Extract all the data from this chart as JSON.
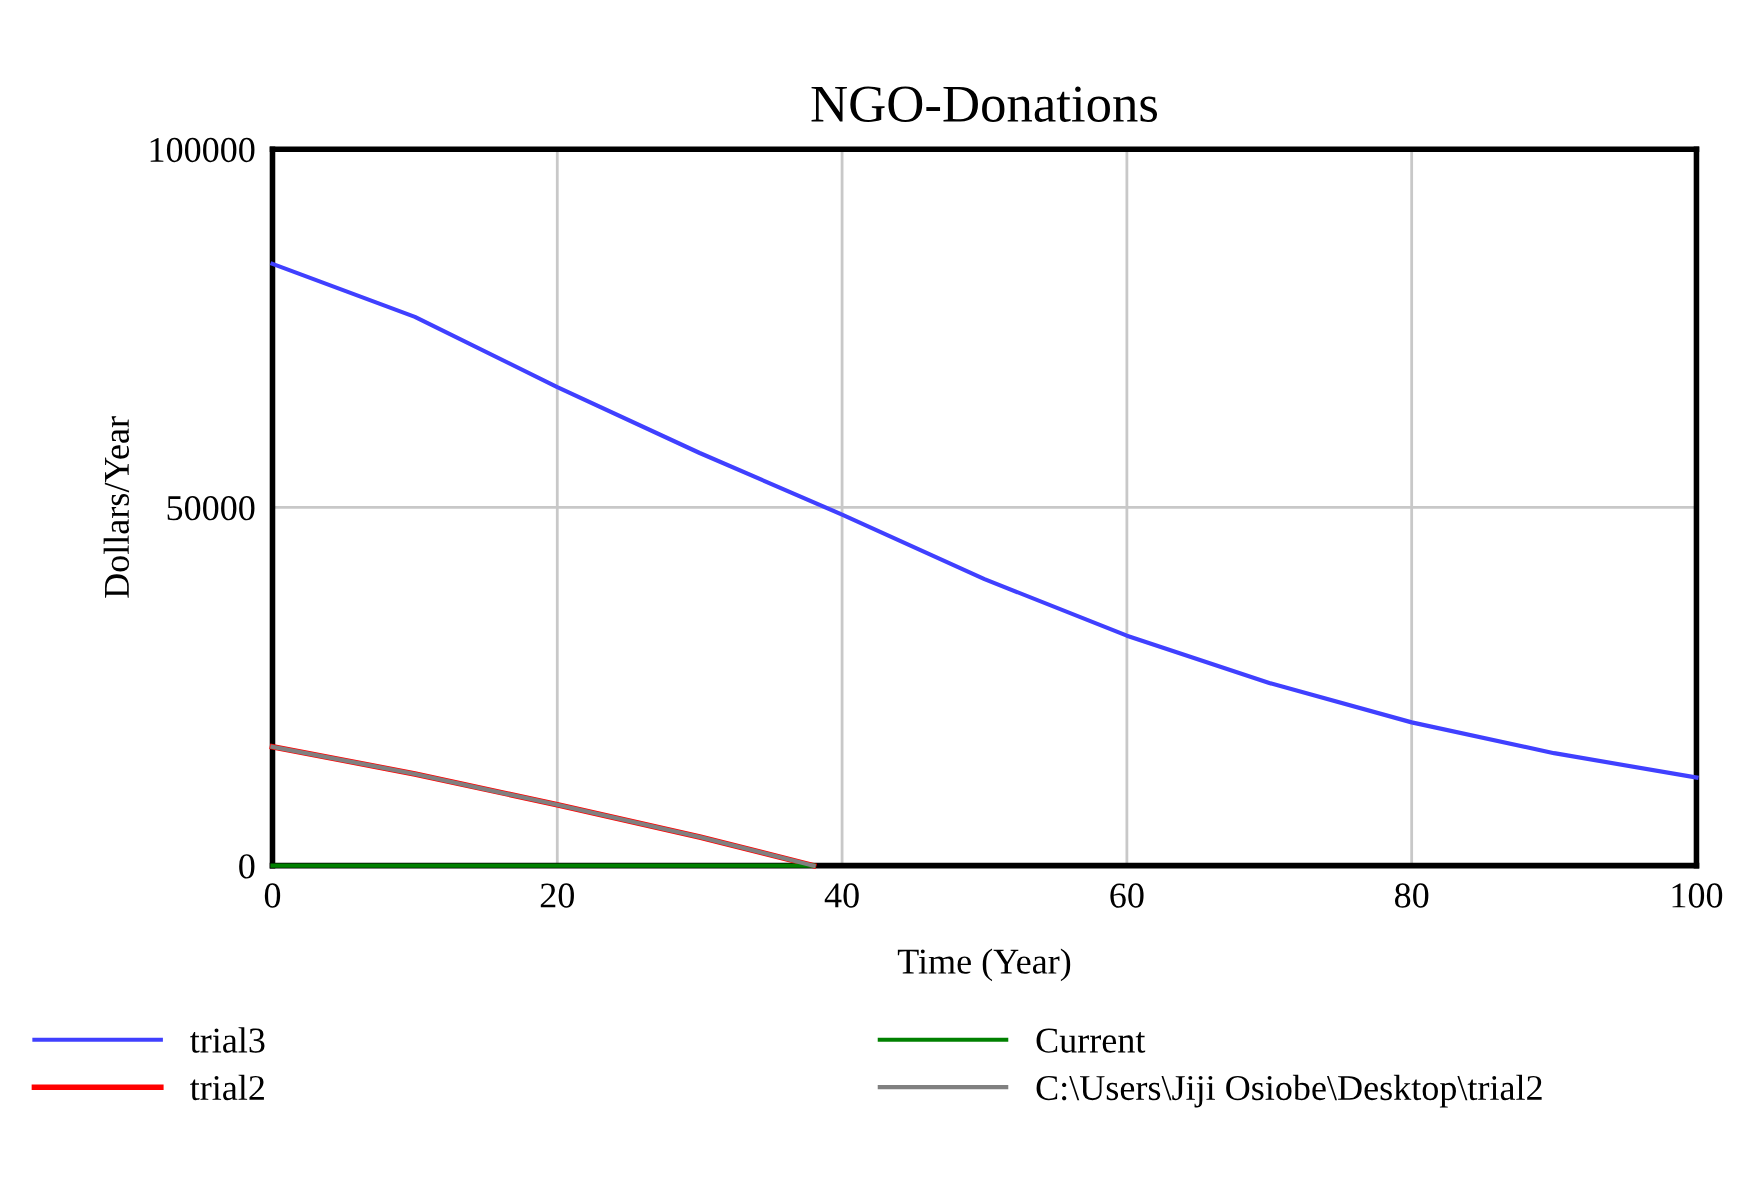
{
  "chart_data": {
    "type": "line",
    "title": "NGO-Donations",
    "xlabel": "Time (Year)",
    "ylabel": "Dollars/Year",
    "xlim": [
      0,
      100
    ],
    "ylim": [
      0,
      100000
    ],
    "xticks": [
      0,
      20,
      40,
      60,
      80,
      100
    ],
    "yticks": [
      0,
      50000,
      100000
    ],
    "grid": true,
    "legend": "bottom",
    "marker": "none",
    "line_style": "solid",
    "series": [
      {
        "name": "trial3",
        "color": "#4040ff",
        "x": [
          0,
          10,
          20,
          30,
          40,
          50,
          60,
          70,
          80,
          90,
          100
        ],
        "values": [
          84000,
          76600,
          66800,
          57600,
          49000,
          40000,
          32100,
          25500,
          20000,
          15700,
          12300
        ]
      },
      {
        "name": "trial2",
        "color": "#ff0000",
        "x": [
          0,
          10,
          20,
          30,
          38
        ],
        "values": [
          16600,
          12800,
          8500,
          4000,
          0
        ]
      },
      {
        "name": "Current",
        "color": "#008000",
        "x": [
          0,
          38
        ],
        "values": [
          0,
          0
        ]
      },
      {
        "name": "C:\\Users\\Jiji Osiobe\\Desktop\\trial2",
        "color": "#808080",
        "x": [
          0,
          10,
          20,
          30,
          38
        ],
        "values": [
          16600,
          12800,
          8500,
          4000,
          0
        ]
      }
    ]
  }
}
